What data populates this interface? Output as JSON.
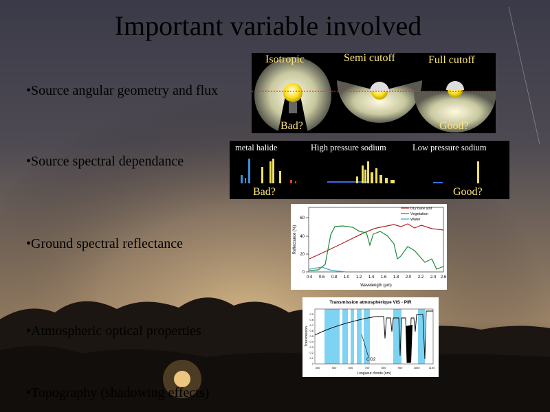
{
  "slide": {
    "title": "Important variable involved",
    "bullets": [
      "•Source angular geometry and flux",
      "•Source spectral dependance",
      "•Ground spectral reflectance",
      "•Atmospheric optical properties",
      "•Topography (shadowing effects)"
    ]
  },
  "geometry_panel": {
    "labels": [
      "Isotropic",
      "Semi cutoff",
      "Full cutoff"
    ],
    "bad": "Bad?",
    "good": "Good?"
  },
  "spectral_panel": {
    "labels": [
      "metal halide",
      "High pressure sodium",
      "Low pressure sodium"
    ],
    "bad": "Bad?",
    "good": "Good?"
  },
  "reflectance_chart": {
    "legend": [
      "Dry bare soil",
      "Vegetation",
      "Water"
    ],
    "ylabel": "Reflectance (%)",
    "xlabel": "Wavelength (µm)",
    "yticks": [
      "0",
      "20",
      "40",
      "60"
    ],
    "xticks": [
      "0.4",
      "0.6",
      "0.8",
      "1.0",
      "1.2",
      "1.4",
      "1.6",
      "1.8",
      "2.0",
      "2.2",
      "2.4",
      "2.6"
    ]
  },
  "transmission_chart": {
    "title": "Transmission atmosphérique VIS - PIR",
    "ylabel": "Transmission",
    "xlabel": "Longueur d'onde (nm)",
    "yticks": [
      "0",
      "0.1",
      "0.2",
      "0.3",
      "0.4",
      "0.5",
      "0.6",
      "0.7",
      "0.8",
      "0.9"
    ],
    "xticks": [
      "400",
      "500",
      "600",
      "700",
      "800",
      "900",
      "1000",
      "1100"
    ],
    "annotation": "CO2"
  },
  "colors": {
    "soil": "#b02020",
    "vegetation": "#1a8a3a",
    "water": "#3aa0c8",
    "band": "#7fd3f2"
  }
}
